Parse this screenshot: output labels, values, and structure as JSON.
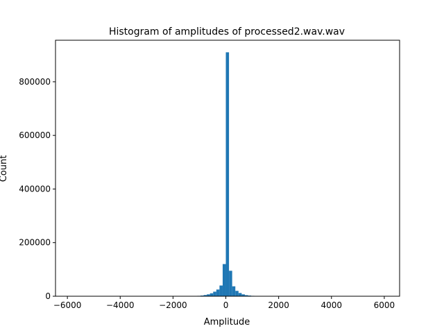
{
  "chart_data": {
    "type": "bar",
    "title": "Histogram of amplitudes of processed2.wav.wav",
    "xlabel": "Amplitude",
    "ylabel": "Count",
    "xlim": [
      -6450,
      6580
    ],
    "ylim": [
      0,
      955000
    ],
    "xticks": [
      -6000,
      -4000,
      -2000,
      0,
      2000,
      4000,
      6000
    ],
    "xtick_labels": [
      "−6000",
      "−4000",
      "−2000",
      "0",
      "2000",
      "4000",
      "6000"
    ],
    "yticks": [
      0,
      200000,
      400000,
      600000,
      800000
    ],
    "ytick_labels": [
      "0",
      "200000",
      "400000",
      "600000",
      "800000"
    ],
    "bin_width": 120,
    "bar_color": "#1f77b4",
    "bins": [
      {
        "x0": -1200,
        "count": 800
      },
      {
        "x0": -1080,
        "count": 1500
      },
      {
        "x0": -960,
        "count": 2500
      },
      {
        "x0": -840,
        "count": 4500
      },
      {
        "x0": -720,
        "count": 7000
      },
      {
        "x0": -600,
        "count": 11000
      },
      {
        "x0": -480,
        "count": 17000
      },
      {
        "x0": -360,
        "count": 25000
      },
      {
        "x0": -240,
        "count": 40000
      },
      {
        "x0": -120,
        "count": 120000
      },
      {
        "x0": 0,
        "count": 910000
      },
      {
        "x0": 120,
        "count": 95000
      },
      {
        "x0": 240,
        "count": 37000
      },
      {
        "x0": 360,
        "count": 20000
      },
      {
        "x0": 480,
        "count": 12000
      },
      {
        "x0": 600,
        "count": 7000
      },
      {
        "x0": 720,
        "count": 4000
      },
      {
        "x0": 840,
        "count": 2500
      },
      {
        "x0": 960,
        "count": 1500
      },
      {
        "x0": 1080,
        "count": 800
      }
    ]
  }
}
